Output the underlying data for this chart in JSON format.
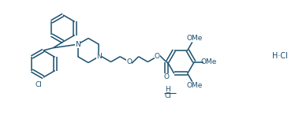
{
  "line_color": "#1a4f6e",
  "bg_color": "#ffffff",
  "line_width": 1.1,
  "font_size": 6.5,
  "fig_width": 3.74,
  "fig_height": 1.56,
  "dpi": 100,
  "xlim": [
    0,
    37.4
  ],
  "ylim": [
    0,
    15.6
  ]
}
